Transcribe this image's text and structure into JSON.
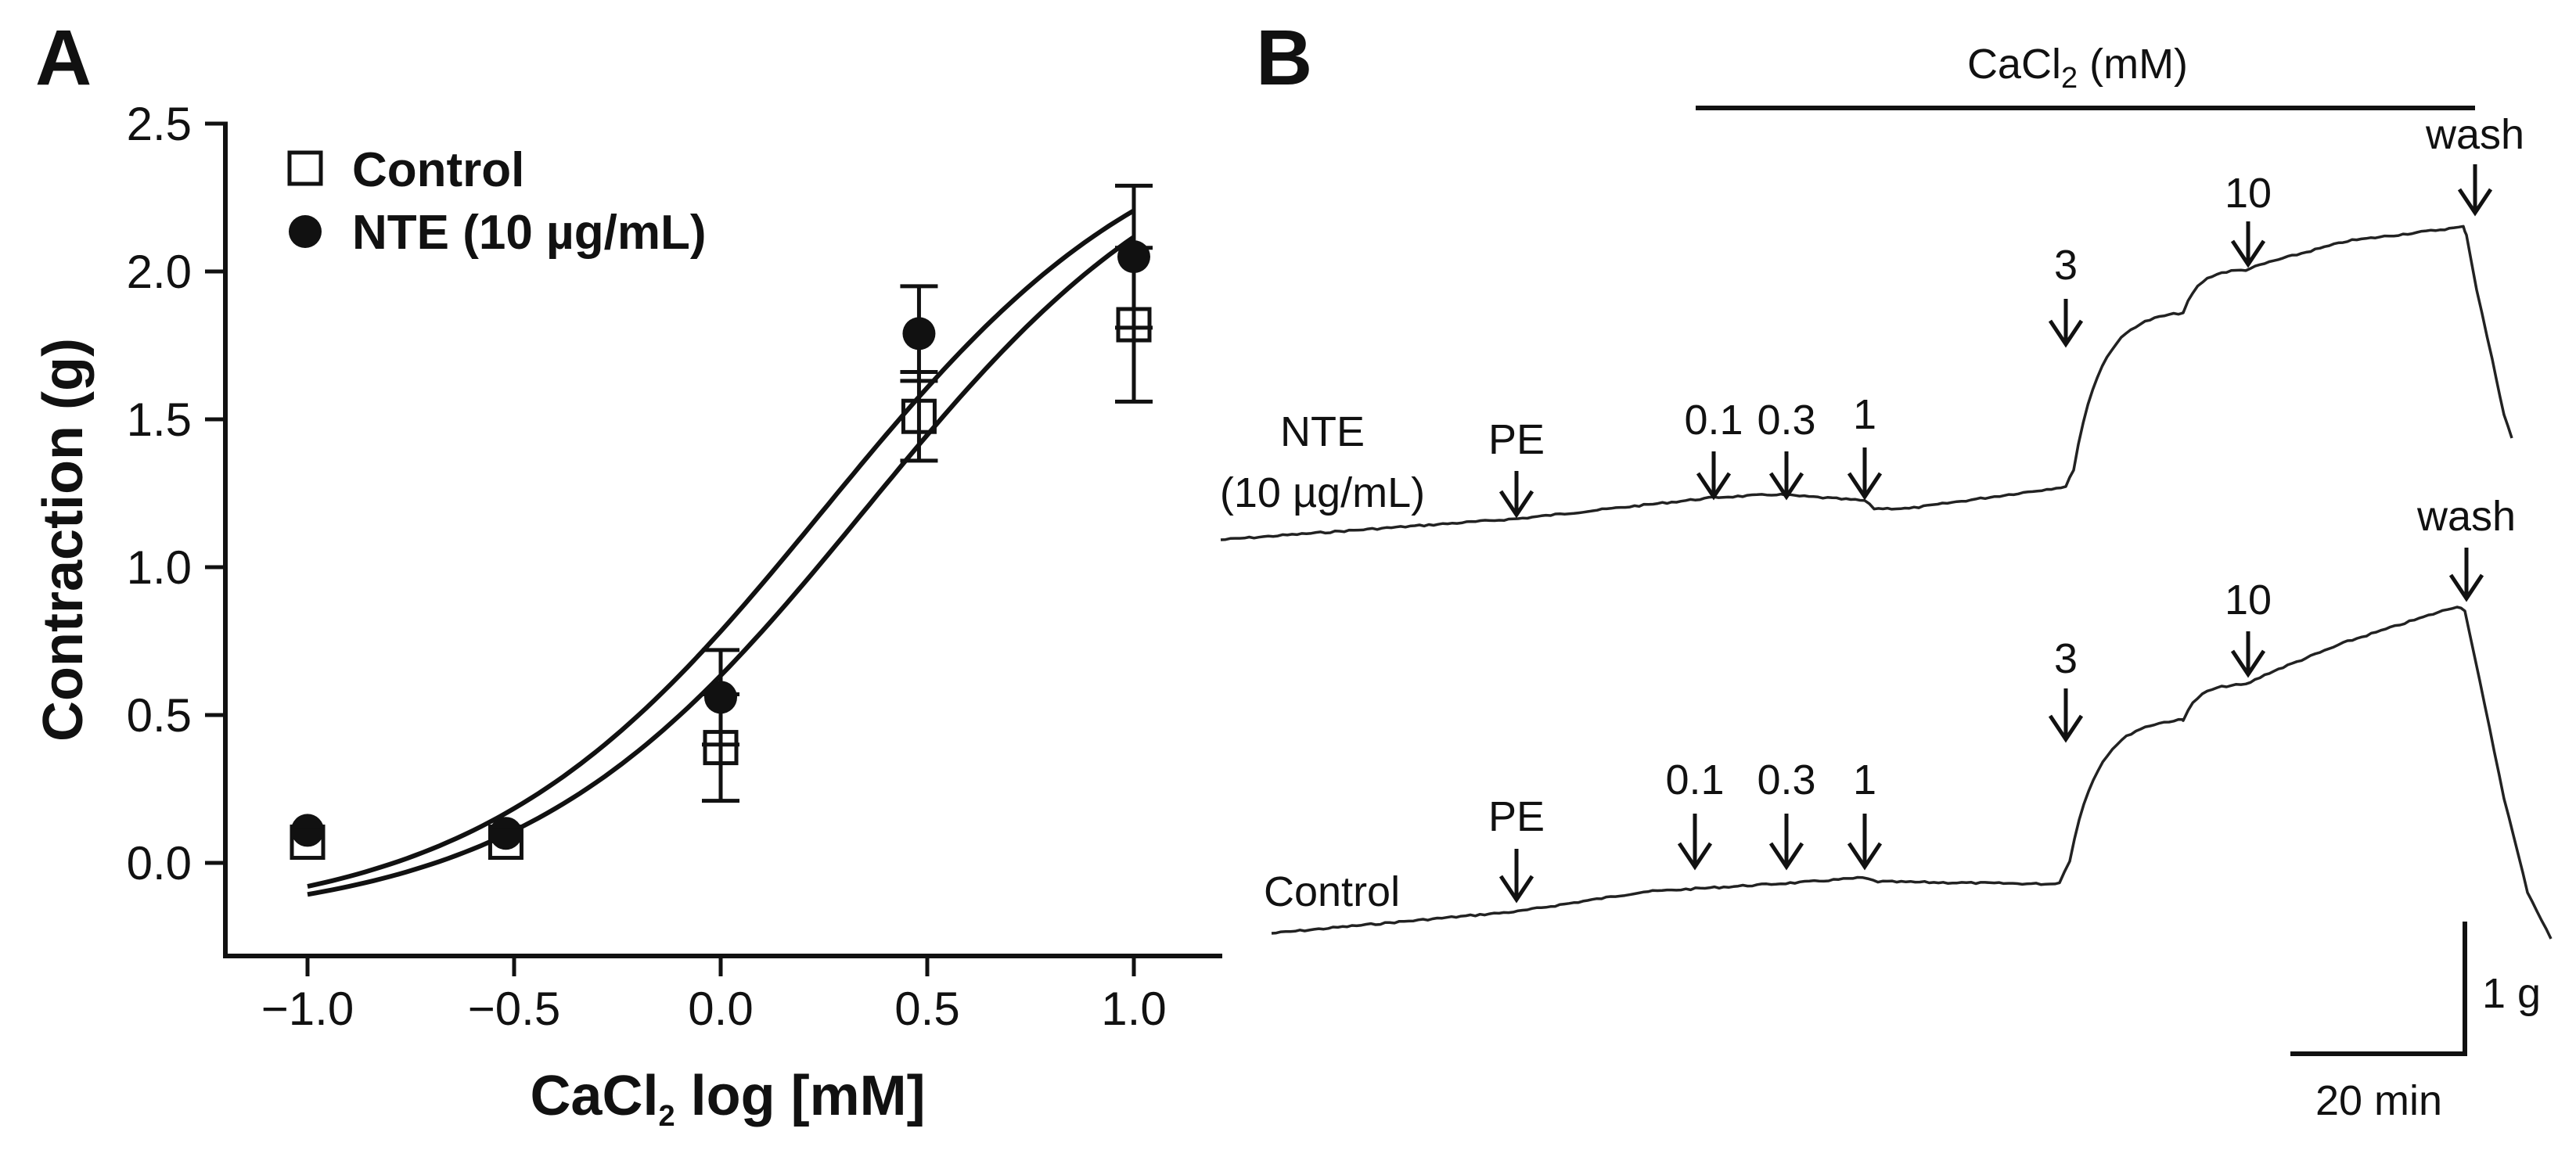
{
  "panel_a": {
    "letter": "A",
    "chart_data": {
      "type": "scatter",
      "xlabel_main": "CaCl",
      "xlabel_sub": "2",
      "xlabel_rest": " log [mM]",
      "ylabel": "Contraction (g)",
      "xlim": [
        -1.2,
        1.2
      ],
      "ylim": [
        -0.3,
        2.5
      ],
      "xticks": [
        -1.0,
        -0.5,
        0.0,
        0.5,
        1.0
      ],
      "xtick_labels": [
        "−1.0",
        "−0.5",
        "0.0",
        "0.5",
        "1.0"
      ],
      "yticks": [
        0.0,
        0.5,
        1.0,
        1.5,
        2.0,
        2.5
      ],
      "ytick_labels": [
        "0.0",
        "0.5",
        "1.0",
        "1.5",
        "2.0",
        "2.5"
      ],
      "legend": [
        "Control",
        "NTE (10 µg/mL)"
      ],
      "series": [
        {
          "name": "Control",
          "marker": "open-square",
          "x": [
            -1.0,
            -0.52,
            0.0,
            0.48,
            1.0
          ],
          "y": [
            0.07,
            0.07,
            0.39,
            1.51,
            1.82
          ],
          "err": [
            0.03,
            0.03,
            0.18,
            0.15,
            0.26
          ],
          "fit": {
            "bottom": -0.21,
            "top": 2.6,
            "logec50": 0.35,
            "hill": 1.05
          }
        },
        {
          "name": "NTE (10 µg/mL)",
          "marker": "filled-circle",
          "x": [
            -1.0,
            -0.52,
            0.0,
            0.48,
            1.0
          ],
          "y": [
            0.11,
            0.1,
            0.56,
            1.79,
            2.05
          ],
          "err": [
            0.02,
            0.02,
            0.16,
            0.16,
            0.24
          ],
          "fit": {
            "bottom": -0.21,
            "top": 2.6,
            "logec50": 0.25,
            "hill": 1.05
          }
        }
      ]
    }
  },
  "panel_b": {
    "letter": "B",
    "bar_label_main": "CaCl",
    "bar_label_sub": "2",
    "bar_label_rest": " (mM)",
    "top_trace": {
      "label_line1": "NTE",
      "label_line2": "(10 µg/mL)",
      "markers": [
        "PE",
        "0.1",
        "0.3",
        "1",
        "3",
        "10",
        "wash"
      ]
    },
    "bottom_trace": {
      "label": "Control",
      "markers": [
        "PE",
        "0.1",
        "0.3",
        "1",
        "3",
        "10",
        "wash"
      ]
    },
    "scale_bar": {
      "y_label": "1 g",
      "x_label": "20 min"
    }
  }
}
